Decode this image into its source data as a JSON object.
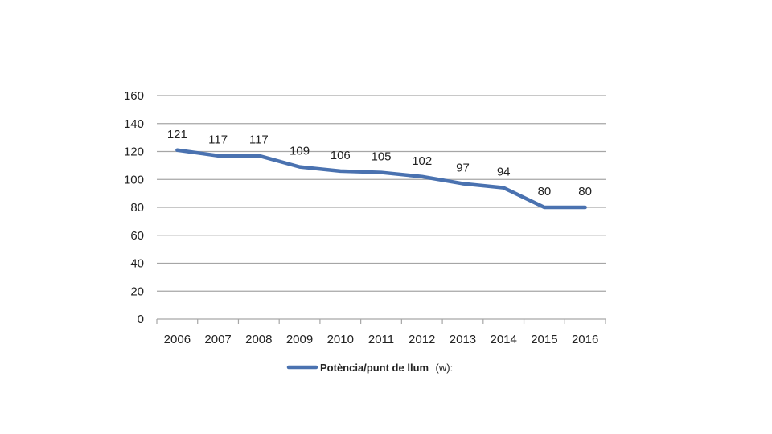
{
  "chart_data": {
    "type": "line",
    "title": "",
    "xlabel": "",
    "ylabel": "",
    "categories": [
      "2006",
      "2007",
      "2008",
      "2009",
      "2010",
      "2011",
      "2012",
      "2013",
      "2014",
      "2015",
      "2016"
    ],
    "series": [
      {
        "name": "Potència/punt de llum",
        "unit_label": "(w):",
        "values": [
          121,
          117,
          117,
          109,
          106,
          105,
          102,
          97,
          94,
          80,
          80
        ],
        "color": "#4a72b0"
      }
    ],
    "ylim": [
      0,
      160
    ],
    "yticks": [
      0,
      20,
      40,
      60,
      80,
      100,
      120,
      140,
      160
    ],
    "grid": true,
    "gridline_color": "#a6a6a6",
    "legend_position": "bottom",
    "data_labels": true
  }
}
